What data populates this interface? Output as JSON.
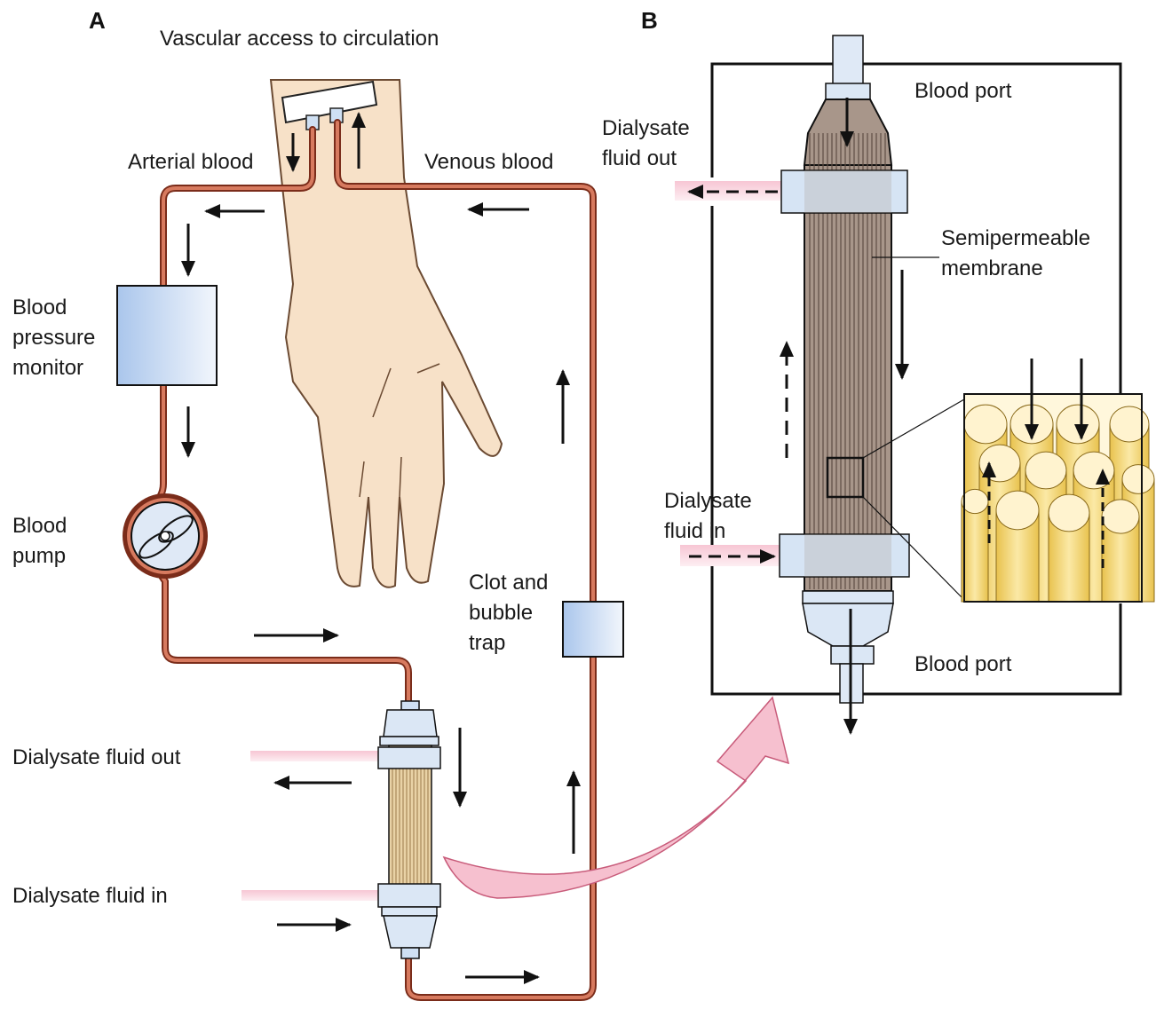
{
  "panels": {
    "a": "A",
    "b": "B"
  },
  "labels": {
    "vascular_access": "Vascular access to circulation",
    "arterial_blood": "Arterial blood",
    "venous_blood": "Venous blood",
    "bp_monitor": [
      "Blood",
      "pressure",
      "monitor"
    ],
    "blood_pump": [
      "Blood",
      "pump"
    ],
    "clot_trap": [
      "Clot and",
      "bubble",
      "trap"
    ],
    "dialysate_out_a": "Dialysate fluid out",
    "dialysate_in_a": "Dialysate fluid in",
    "blood_port_top": "Blood port",
    "blood_port_bottom": "Blood port",
    "dialysate_out_b": [
      "Dialysate",
      "fluid out"
    ],
    "dialysate_in_b": [
      "Dialysate",
      "fluid in"
    ],
    "membrane": [
      "Semipermeable",
      "membrane"
    ]
  },
  "colors": {
    "blood_tube": "#c8644a",
    "skin": "#f7e1c8",
    "device_blue": "#c9dcf2",
    "dialysate_pink": "#f2b7c8",
    "fiber_gold": "#f3d36b",
    "filter_brown": "#9a8a80"
  }
}
